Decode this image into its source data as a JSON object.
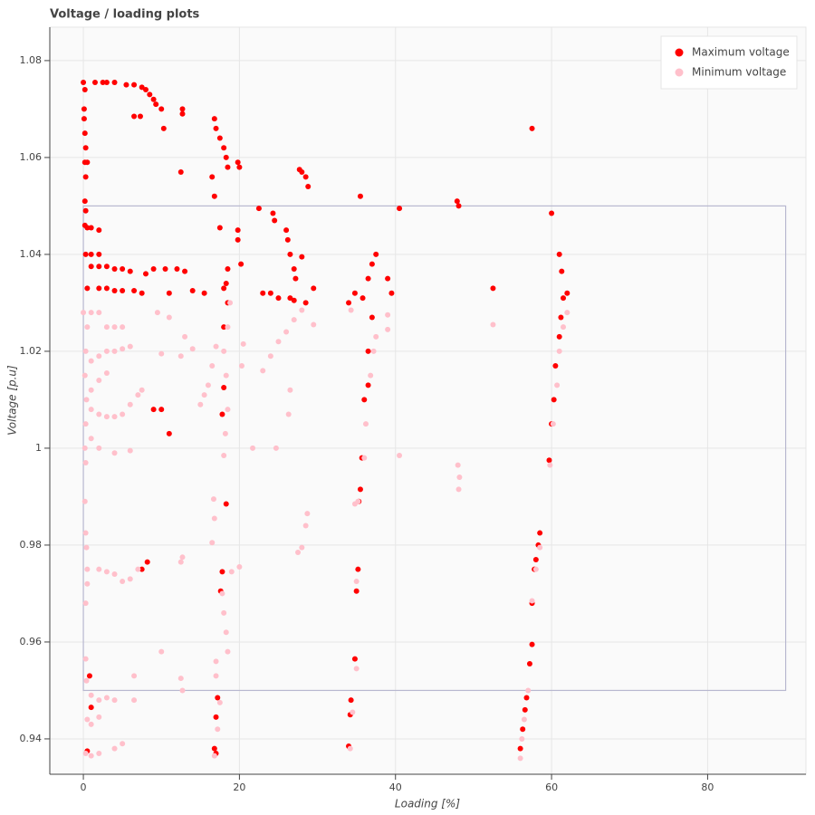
{
  "chart_data": {
    "type": "scatter",
    "title": "Voltage / loading plots",
    "x_label": "Loading [%]",
    "y_label": "Voltage [p.u]",
    "xlim": [
      -4.3,
      92.6
    ],
    "ylim": [
      0.9327,
      1.0869
    ],
    "xticks": [
      0,
      20,
      40,
      60,
      80
    ],
    "yticks": [
      0.94,
      0.96,
      0.98,
      1,
      1.02,
      1.04,
      1.06,
      1.08
    ],
    "grid": true,
    "legend": "top_right",
    "limit_box": {
      "x": [
        0,
        90
      ],
      "y": [
        0.95,
        1.05
      ],
      "color": "#b8b8d0"
    },
    "series": [
      {
        "name": "Maximum voltage",
        "color": "#ff0000",
        "x": [
          0,
          0.2,
          0.1,
          0.1,
          0.2,
          0.3,
          0.2,
          0.3,
          0.5,
          0.2,
          0.3,
          0.2,
          0.5,
          1,
          2,
          0.3,
          1,
          2,
          1.5,
          2.5,
          3,
          4,
          5.5,
          6.5,
          7.5,
          8,
          8.5,
          9,
          9.3,
          10,
          6.5,
          7.3,
          10.3,
          12.7,
          12.7,
          16.8,
          17,
          17.5,
          18,
          18.3,
          18.5,
          16.5,
          16.8,
          19.8,
          20,
          12.5,
          17.5,
          18.5,
          19.8,
          19.8,
          20.2,
          22.5,
          24.3,
          24.5,
          26,
          26.2,
          26.5,
          27,
          27.2,
          27.7,
          28,
          28.5,
          28.8,
          28,
          35.5,
          40.5,
          47.9,
          48.1,
          57.5,
          60,
          61,
          61.3,
          52.5,
          1,
          2,
          3,
          4,
          5,
          6,
          9,
          10.5,
          12,
          13,
          8,
          0.5,
          2,
          3,
          4,
          5,
          6.5,
          7.5,
          11,
          14,
          15.5,
          18,
          18.3,
          23,
          24,
          25,
          26.5,
          27,
          28.5,
          29.5,
          34,
          35.8,
          36.5,
          37,
          37.5,
          36.5,
          37,
          36,
          36.5,
          35.7,
          35.5,
          35.3,
          39,
          39.5,
          34.8,
          62,
          61.5,
          61.2,
          61,
          60.5,
          60.3,
          60,
          59.7,
          18.5,
          18,
          18,
          17.8,
          18.3,
          10,
          9,
          11,
          17.8,
          17.6,
          35.2,
          35,
          34.8,
          17.2,
          17,
          16.8,
          17,
          34.3,
          34.2,
          34,
          58.5,
          58.3,
          58,
          57.8,
          57.5,
          57.5,
          57.2,
          56.8,
          56.6,
          56.3,
          56,
          0.8,
          1,
          0.5,
          8.2,
          7.5
        ],
        "values": [
          1.0755,
          1.074,
          1.07,
          1.068,
          1.065,
          1.062,
          1.059,
          1.056,
          1.059,
          1.051,
          1.049,
          1.046,
          1.0455,
          1.0455,
          1.045,
          1.04,
          1.04,
          1.04,
          1.0755,
          1.0755,
          1.0755,
          1.0755,
          1.075,
          1.075,
          1.0745,
          1.074,
          1.073,
          1.072,
          1.071,
          1.07,
          1.0685,
          1.0685,
          1.066,
          1.07,
          1.069,
          1.068,
          1.066,
          1.064,
          1.062,
          1.06,
          1.058,
          1.056,
          1.052,
          1.059,
          1.058,
          1.057,
          1.0455,
          1.037,
          1.045,
          1.043,
          1.038,
          1.0495,
          1.0485,
          1.047,
          1.045,
          1.043,
          1.04,
          1.037,
          1.035,
          1.0575,
          1.057,
          1.056,
          1.054,
          1.0395,
          1.052,
          1.0495,
          1.051,
          1.05,
          1.066,
          1.0485,
          1.04,
          1.0365,
          1.033,
          1.0375,
          1.0375,
          1.0375,
          1.037,
          1.037,
          1.0365,
          1.037,
          1.037,
          1.037,
          1.0365,
          1.036,
          1.033,
          1.033,
          1.033,
          1.0325,
          1.0325,
          1.0325,
          1.032,
          1.032,
          1.0325,
          1.032,
          1.033,
          1.034,
          1.032,
          1.032,
          1.031,
          1.031,
          1.0305,
          1.03,
          1.033,
          1.03,
          1.031,
          1.035,
          1.038,
          1.04,
          1.02,
          1.027,
          1.01,
          1.013,
          0.998,
          0.9915,
          0.989,
          1.035,
          1.032,
          1.032,
          1.032,
          1.031,
          1.027,
          1.023,
          1.017,
          1.01,
          1.005,
          0.9975,
          1.03,
          1.025,
          1.0125,
          1.007,
          0.9885,
          1.008,
          1.008,
          1.003,
          0.9745,
          0.9705,
          0.975,
          0.9705,
          0.9565,
          0.9485,
          0.9445,
          0.938,
          0.937,
          0.948,
          0.945,
          0.9385,
          0.9825,
          0.98,
          0.977,
          0.975,
          0.968,
          0.9595,
          0.9555,
          0.9485,
          0.946,
          0.942,
          0.938,
          0.953,
          0.9465,
          0.9375,
          0.9765,
          0.975
        ]
      },
      {
        "name": "Minimum voltage",
        "color": "#ffc0cb",
        "x": [
          0,
          0.5,
          0.3,
          0.2,
          0.4,
          0.3,
          0.2,
          0.3,
          1,
          2,
          3,
          4,
          5,
          1,
          2,
          3,
          4,
          5,
          6,
          1,
          2,
          3,
          1,
          2,
          3,
          4,
          5,
          6,
          7,
          7.5,
          1,
          2,
          4,
          6,
          0.2,
          0.3,
          0.4,
          0.5,
          0.5,
          0.3,
          2,
          3,
          4,
          5,
          6,
          7,
          0.3,
          0.4,
          1,
          2,
          3,
          4,
          6.5,
          6.5,
          0.5,
          1,
          2,
          0.3,
          1,
          2,
          4,
          5,
          10,
          12.5,
          12.7,
          12.7,
          12.5,
          9.5,
          11,
          13,
          10,
          12.5,
          14,
          17,
          16.5,
          16,
          15.5,
          15,
          18,
          18.5,
          18.8,
          18.3,
          18.5,
          18.2,
          18,
          16.7,
          16.8,
          16.5,
          17.8,
          18,
          18.3,
          18.5,
          17,
          17,
          19,
          20,
          20.3,
          20.5,
          21.7,
          23,
          24,
          25,
          26,
          27,
          28,
          24.7,
          26.3,
          26.5,
          29.5,
          27.5,
          28,
          28.5,
          28.7,
          36,
          36.2,
          36.8,
          37.2,
          37.5,
          34.8,
          35.2,
          34.3,
          39,
          39,
          40.5,
          48,
          48.2,
          48.1,
          52.5,
          59.8,
          60.2,
          60.7,
          61,
          61.5,
          62,
          58.5,
          58,
          57.5,
          57,
          56.5,
          56.2,
          56,
          35,
          35,
          34.5,
          34.2,
          16.8,
          17.2,
          17.5
        ],
        "values": [
          1.028,
          1.025,
          1.02,
          1.015,
          1.01,
          1.005,
          1,
          0.997,
          1.028,
          1.028,
          1.025,
          1.025,
          1.025,
          1.018,
          1.019,
          1.02,
          1.02,
          1.0205,
          1.021,
          1.012,
          1.014,
          1.0155,
          1.008,
          1.007,
          1.0065,
          1.0065,
          1.007,
          1.009,
          1.011,
          1.012,
          1.002,
          1,
          0.999,
          0.9995,
          0.989,
          0.9825,
          0.9795,
          0.975,
          0.972,
          0.968,
          0.975,
          0.9745,
          0.974,
          0.9725,
          0.973,
          0.975,
          0.9565,
          0.952,
          0.949,
          0.948,
          0.9485,
          0.948,
          0.953,
          0.948,
          0.944,
          0.943,
          0.9445,
          0.937,
          0.9365,
          0.937,
          0.938,
          0.939,
          0.958,
          0.9525,
          0.95,
          0.9775,
          0.9765,
          1.028,
          1.027,
          1.023,
          1.0195,
          1.019,
          1.0205,
          1.021,
          1.017,
          1.013,
          1.011,
          1.009,
          1.02,
          1.025,
          1.03,
          1.015,
          1.008,
          1.003,
          0.9985,
          0.9895,
          0.9855,
          0.9805,
          0.97,
          0.966,
          0.962,
          0.958,
          0.956,
          0.953,
          0.9745,
          0.9755,
          1.017,
          1.0215,
          1,
          1.016,
          1.019,
          1.022,
          1.024,
          1.0265,
          1.0285,
          1,
          1.007,
          1.012,
          1.0255,
          0.9785,
          0.9795,
          0.984,
          0.9865,
          0.998,
          1.005,
          1.015,
          1.02,
          1.023,
          0.9885,
          0.989,
          1.0285,
          1.0275,
          1.0245,
          0.9985,
          0.9965,
          0.994,
          0.9915,
          1.0255,
          0.9965,
          1.005,
          1.013,
          1.02,
          1.025,
          1.028,
          0.9795,
          0.975,
          0.9685,
          0.95,
          0.944,
          0.94,
          0.936,
          0.9725,
          0.9545,
          0.9455,
          0.938,
          0.9365,
          0.942,
          0.9475
        ]
      }
    ]
  }
}
